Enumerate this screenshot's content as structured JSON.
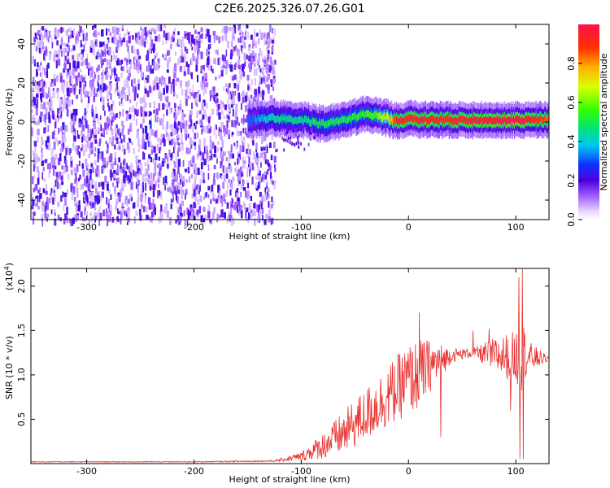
{
  "page": {
    "title": "C2E6.2025.326.07.26.G01"
  },
  "colors": {
    "snr_line": "#e8312f",
    "axis": "#000000",
    "background": "#ffffff"
  },
  "chart_data": [
    {
      "type": "heatmap",
      "title": "",
      "xlabel": "Height of straight line (km)",
      "ylabel": "Frequency (Hz)",
      "xlim": [
        -352,
        131
      ],
      "ylim": [
        -50,
        50
      ],
      "xticks": [
        -300,
        -200,
        -100,
        0,
        100
      ],
      "yticks": [
        -40,
        -20,
        0,
        20,
        40
      ],
      "colorbar": {
        "label": "Normalized spectral amplitude",
        "range": [
          0.0,
          1.0
        ],
        "ticks": [
          0.0,
          0.2,
          0.4,
          0.6,
          0.8
        ],
        "tick_labels": [
          "0.0",
          "0.2",
          "0.4",
          "0.6",
          "0.8"
        ],
        "colormap": "rainbow (white to violet to blue to cyan to green to yellow to red)"
      },
      "regions": [
        {
          "description_x_range": [
            -352,
            -125
          ],
          "pattern": "broadband noise, amplitude 0.05-0.25"
        },
        {
          "description_x_range": [
            -125,
            131
          ],
          "pattern": "narrow carrier line near 0 Hz, amplitude rising to 0.9-1.0"
        }
      ],
      "carrier_track": {
        "x": [
          -150,
          -125,
          -100,
          -80,
          -60,
          -40,
          -30,
          -20,
          -10,
          0,
          10,
          30,
          60,
          100,
          131
        ],
        "freq_hz": [
          1,
          2,
          1,
          -1,
          1,
          4,
          3,
          2,
          0,
          2,
          1,
          1,
          1,
          1,
          1
        ],
        "amplitude": [
          0.3,
          0.45,
          0.45,
          0.5,
          0.5,
          0.55,
          0.6,
          0.7,
          0.95,
          0.9,
          0.95,
          0.9,
          0.95,
          1.0,
          0.85
        ]
      }
    },
    {
      "type": "line",
      "title": "",
      "xlabel": "Height of straight line (km)",
      "ylabel": "SNR (10 * v/v)",
      "y_multiplier_label": "(x10",
      "y_multiplier_exp": "4",
      "xlim": [
        -352,
        131
      ],
      "ylim": [
        0,
        2.2
      ],
      "xticks": [
        -300,
        -200,
        -100,
        0,
        100
      ],
      "yticks": [
        0.5,
        1.0,
        1.5,
        2.0
      ],
      "ytick_labels": [
        "0.5",
        "1.0",
        "1.5",
        "2.0"
      ],
      "series": [
        {
          "name": "",
          "envelope_x": [
            -352,
            -200,
            -125,
            -100,
            -80,
            -60,
            -40,
            -20,
            0,
            10,
            20,
            40,
            60,
            80,
            100,
            105,
            110,
            131
          ],
          "envelope_mean": [
            0.02,
            0.02,
            0.03,
            0.08,
            0.2,
            0.35,
            0.55,
            0.75,
            0.95,
            1.0,
            1.1,
            1.22,
            1.25,
            1.22,
            1.2,
            1.3,
            1.2,
            1.18
          ],
          "envelope_spread": [
            0.005,
            0.005,
            0.01,
            0.05,
            0.15,
            0.25,
            0.3,
            0.35,
            0.4,
            0.4,
            0.3,
            0.08,
            0.05,
            0.2,
            0.3,
            0.5,
            0.2,
            0.02
          ],
          "spikes": [
            {
              "x": 10,
              "y": 1.7
            },
            {
              "x": 30,
              "y": 0.3
            },
            {
              "x": 60,
              "y": 1.5
            },
            {
              "x": 75,
              "y": 1.52
            },
            {
              "x": 103,
              "y": 2.1
            },
            {
              "x": 106,
              "y": 2.2
            },
            {
              "x": 104,
              "y": 0.05
            },
            {
              "x": 107,
              "y": 0.05
            },
            {
              "x": 95,
              "y": 0.6
            }
          ]
        }
      ]
    }
  ]
}
